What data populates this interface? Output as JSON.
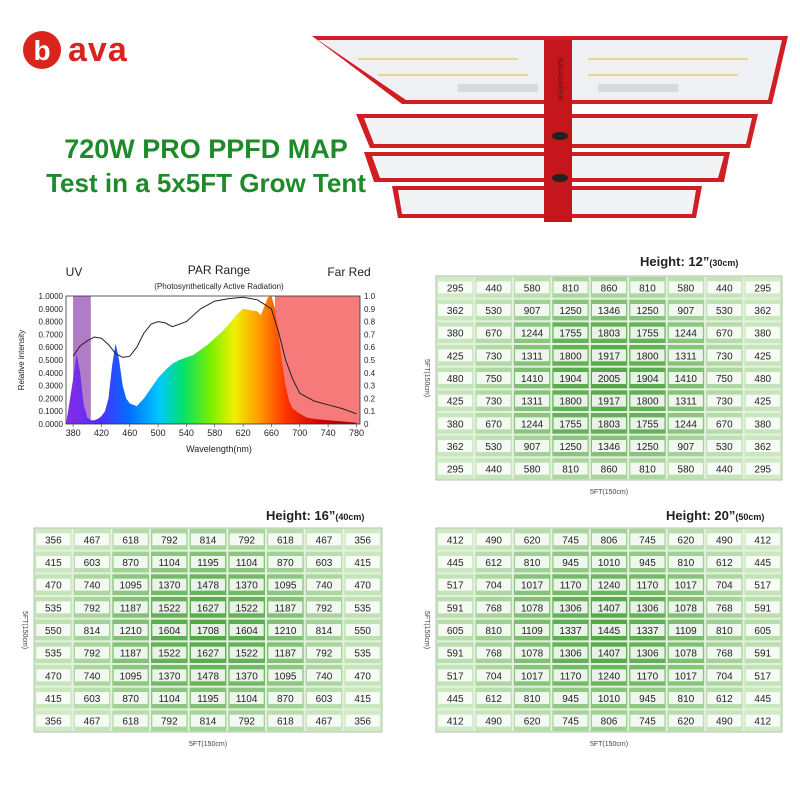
{
  "brand": {
    "logo_letter": "b",
    "logo_text": "ava",
    "accent": "#d9231d"
  },
  "headline": {
    "line1": "720W PRO PPFD MAP",
    "line2": "Test in a 5x5FT Grow Tent",
    "color": "#1f8a2a"
  },
  "fixture": {
    "brand_mark": "BAVAGREEN"
  },
  "chart_data": [
    {
      "type": "line",
      "band_labels": {
        "uv": "UV",
        "par": "PAR Range",
        "par_sub": "(Photosynthetically Active Radiation)",
        "far_red": "Far Red"
      },
      "xlabel": "Wavelength(nm)",
      "ylabel": "Relative intensity",
      "xlim": [
        370,
        785
      ],
      "ylim": [
        0,
        1
      ],
      "x_ticks": [
        380,
        420,
        460,
        500,
        540,
        580,
        620,
        660,
        700,
        740,
        780
      ],
      "y_ticks_left": [
        "0.0000",
        "0.1000",
        "0.2000",
        "0.3000",
        "0.4000",
        "0.5000",
        "0.6000",
        "0.7000",
        "0.8000",
        "0.9000",
        "1.0000"
      ],
      "y_ticks_right": [
        "0",
        "0.1",
        "0.2",
        "0.3",
        "0.4",
        "0.5",
        "0.6",
        "0.7",
        "0.8",
        "0.9",
        "1.0"
      ],
      "bands": [
        {
          "name": "UV",
          "x": [
            380,
            405
          ],
          "color": "#b07cc6"
        },
        {
          "name": "Far Red",
          "x": [
            665,
            785
          ],
          "color": "#f77a7a"
        }
      ],
      "series": [
        {
          "style": "filled-spectrum",
          "x": [
            370,
            380,
            385,
            390,
            395,
            400,
            405,
            410,
            415,
            420,
            425,
            430,
            435,
            440,
            445,
            450,
            455,
            460,
            470,
            480,
            490,
            500,
            510,
            520,
            530,
            540,
            550,
            560,
            570,
            580,
            590,
            600,
            610,
            620,
            630,
            640,
            645,
            650,
            655,
            660,
            665,
            670,
            675,
            680,
            685,
            690,
            700,
            710,
            720,
            740,
            760,
            780
          ],
          "y": [
            0.0,
            0.35,
            0.55,
            0.4,
            0.15,
            0.05,
            0.03,
            0.03,
            0.04,
            0.06,
            0.1,
            0.2,
            0.45,
            0.63,
            0.5,
            0.3,
            0.2,
            0.16,
            0.14,
            0.2,
            0.28,
            0.36,
            0.42,
            0.47,
            0.5,
            0.52,
            0.54,
            0.58,
            0.62,
            0.67,
            0.72,
            0.78,
            0.85,
            0.9,
            0.89,
            0.88,
            0.85,
            0.92,
            0.99,
            1.0,
            0.9,
            0.7,
            0.48,
            0.3,
            0.18,
            0.12,
            0.08,
            0.05,
            0.04,
            0.03,
            0.02,
            0.01
          ]
        },
        {
          "style": "black-line",
          "x": [
            380,
            390,
            400,
            410,
            420,
            430,
            440,
            450,
            460,
            470,
            480,
            490,
            500,
            510,
            520,
            540,
            560,
            580,
            600,
            620,
            640,
            660,
            670,
            680,
            690,
            700,
            720,
            740,
            760,
            780
          ],
          "y": [
            0.53,
            0.61,
            0.65,
            0.68,
            0.67,
            0.62,
            0.55,
            0.52,
            0.53,
            0.6,
            0.71,
            0.78,
            0.8,
            0.79,
            0.76,
            0.8,
            0.9,
            0.96,
            0.98,
            0.99,
            0.97,
            0.9,
            0.72,
            0.5,
            0.35,
            0.24,
            0.18,
            0.15,
            0.12,
            0.08
          ]
        }
      ]
    },
    {
      "type": "heatmap",
      "title": "Height: 12”",
      "title_unit": "(30cm)",
      "xlabel": "5FT(150cm)",
      "ylabel": "5FT(150cm)",
      "rows": [
        [
          295,
          440,
          580,
          810,
          860,
          810,
          580,
          440,
          295
        ],
        [
          362,
          530,
          907,
          1250,
          1346,
          1250,
          907,
          530,
          362
        ],
        [
          380,
          670,
          1244,
          1755,
          1803,
          1755,
          1244,
          670,
          380
        ],
        [
          425,
          730,
          1311,
          1800,
          1917,
          1800,
          1311,
          730,
          425
        ],
        [
          480,
          750,
          1410,
          1904,
          2005,
          1904,
          1410,
          750,
          480
        ],
        [
          425,
          730,
          1311,
          1800,
          1917,
          1800,
          1311,
          730,
          425
        ],
        [
          380,
          670,
          1244,
          1755,
          1803,
          1755,
          1244,
          670,
          380
        ],
        [
          362,
          530,
          907,
          1250,
          1346,
          1250,
          907,
          530,
          362
        ],
        [
          295,
          440,
          580,
          810,
          860,
          810,
          580,
          440,
          295
        ]
      ]
    },
    {
      "type": "heatmap",
      "title": "Height: 16”",
      "title_unit": "(40cm)",
      "xlabel": "5FT(150cm)",
      "ylabel": "5FT(150cm)",
      "rows": [
        [
          356,
          467,
          618,
          792,
          814,
          792,
          618,
          467,
          356
        ],
        [
          415,
          603,
          870,
          1104,
          1195,
          1104,
          870,
          603,
          415
        ],
        [
          470,
          740,
          1095,
          1370,
          1478,
          1370,
          1095,
          740,
          470
        ],
        [
          535,
          792,
          1187,
          1522,
          1627,
          1522,
          1187,
          792,
          535
        ],
        [
          550,
          814,
          1210,
          1604,
          1708,
          1604,
          1210,
          814,
          550
        ],
        [
          535,
          792,
          1187,
          1522,
          1627,
          1522,
          1187,
          792,
          535
        ],
        [
          470,
          740,
          1095,
          1370,
          1478,
          1370,
          1095,
          740,
          470
        ],
        [
          415,
          603,
          870,
          1104,
          1195,
          1104,
          870,
          603,
          415
        ],
        [
          356,
          467,
          618,
          792,
          814,
          792,
          618,
          467,
          356
        ]
      ]
    },
    {
      "type": "heatmap",
      "title": "Height: 20”",
      "title_unit": "(50cm)",
      "xlabel": "5FT(150cm)",
      "ylabel": "5FT(150cm)",
      "rows": [
        [
          412,
          490,
          620,
          745,
          806,
          745,
          620,
          490,
          412
        ],
        [
          445,
          612,
          810,
          945,
          1010,
          945,
          810,
          612,
          445
        ],
        [
          517,
          704,
          1017,
          1170,
          1240,
          1170,
          1017,
          704,
          517
        ],
        [
          591,
          768,
          1078,
          1306,
          1407,
          1306,
          1078,
          768,
          591
        ],
        [
          605,
          810,
          1109,
          1337,
          1445,
          1337,
          1109,
          810,
          605
        ],
        [
          591,
          768,
          1078,
          1306,
          1407,
          1306,
          1078,
          768,
          591
        ],
        [
          517,
          704,
          1017,
          1170,
          1240,
          1170,
          1017,
          704,
          517
        ],
        [
          445,
          612,
          810,
          945,
          1010,
          945,
          810,
          612,
          445
        ],
        [
          412,
          490,
          620,
          745,
          806,
          745,
          620,
          490,
          412
        ]
      ]
    }
  ]
}
